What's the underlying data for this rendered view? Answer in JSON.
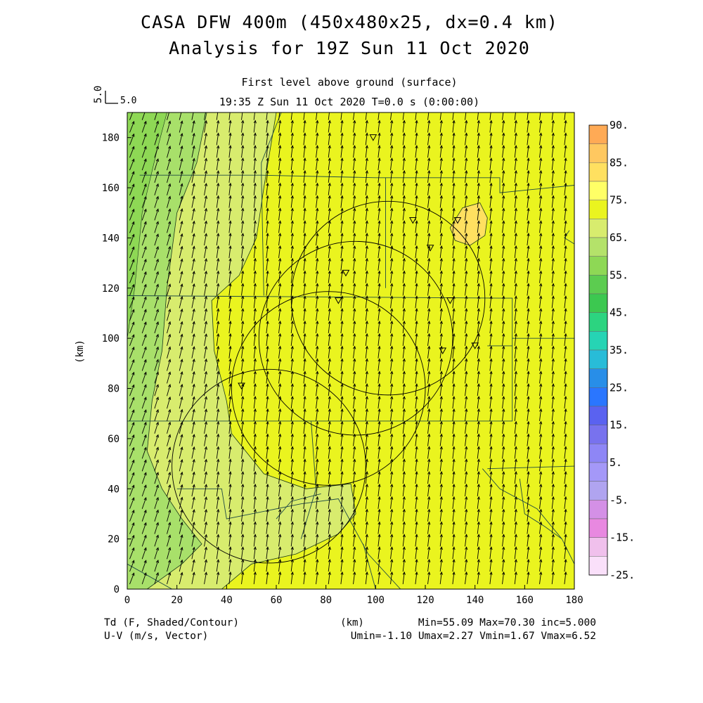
{
  "chart_data": {
    "type": "heatmap",
    "title": "CASA DFW 400m (450x480x25, dx=0.4 km)",
    "title2": "Analysis for 19Z Sun 11 Oct 2020",
    "subtitle": "First level above ground (surface)",
    "time_label": "19:35 Z Sun 11 Oct 2020    T=0.0 s (0:00:00)",
    "vector_ref_value": "5.0",
    "vector_ref_label": "5.0",
    "ylabel": "(km)",
    "xlabel": "(km)",
    "xlim": [
      0,
      180
    ],
    "ylim": [
      0,
      190
    ],
    "x_ticks": [
      "0",
      "20",
      "40",
      "60",
      "80",
      "100",
      "120",
      "140",
      "160",
      "180"
    ],
    "y_ticks": [
      "0",
      "20",
      "40",
      "60",
      "80",
      "100",
      "120",
      "140",
      "160",
      "180"
    ],
    "field_label": "Td (F, Shaded/Contour)",
    "vector_label": "U-V (m/s, Vector)",
    "stats": "Min=55.09 Max=70.30 inc=5.000",
    "wind_stats": "Umin=-1.10 Umax=2.27 Vmin=1.67 Vmax=6.52",
    "colorbar_labels": [
      "90.",
      "85.",
      "75.",
      "65.",
      "55.",
      "45.",
      "35.",
      "25.",
      "15.",
      "5.",
      "-5.",
      "-15.",
      "-25."
    ],
    "colorbar_colors": [
      "#ffaa55",
      "#ffc860",
      "#ffe060",
      "#ffff66",
      "#eaf41f",
      "#d8ec6e",
      "#b4e26a",
      "#8ed855",
      "#5ccc50",
      "#3cc850",
      "#2cd480",
      "#26d4b4",
      "#28bcd8",
      "#288ee8",
      "#2a76ff",
      "#5a62f0",
      "#7872ee",
      "#8e86f6",
      "#a498f8",
      "#b0a4f0",
      "#d490e6",
      "#e888e0",
      "#f0c0ec",
      "#fae0fa"
    ],
    "field_colors": {
      "band55": "#a8e06a",
      "band60": "#d8ec6e",
      "band65": "#eaf41f",
      "band70": "#ffe060"
    },
    "radar_sites": [
      {
        "x": 92,
        "y": 100
      },
      {
        "x": 81,
        "y": 80
      },
      {
        "x": 105,
        "y": 116
      },
      {
        "x": 57,
        "y": 49
      }
    ],
    "radar_range_km": 39,
    "triangle_markers": [
      {
        "x": 99,
        "y": 180
      },
      {
        "x": 115,
        "y": 147
      },
      {
        "x": 133,
        "y": 147
      },
      {
        "x": 122,
        "y": 136
      },
      {
        "x": 88,
        "y": 126
      },
      {
        "x": 85,
        "y": 115
      },
      {
        "x": 130,
        "y": 115
      },
      {
        "x": 127,
        "y": 95
      },
      {
        "x": 140,
        "y": 97
      },
      {
        "x": 46,
        "y": 81
      }
    ],
    "wind_field": {
      "u": 0.6,
      "v": 5.0,
      "u_west": 1.8,
      "v_west": 4.6
    }
  }
}
